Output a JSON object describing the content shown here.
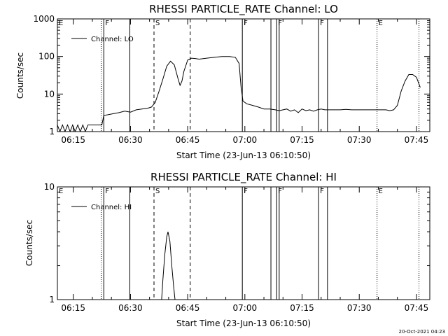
{
  "footer_timestamp": "20-Oct-2021 04:23",
  "chart_data": [
    {
      "type": "line",
      "title": "RHESSI PARTICLE_RATE Channel: LO",
      "xlabel": "Start Time (23-Jun-13 06:10:50)",
      "ylabel": "Counts/sec",
      "yscale": "log",
      "ylim": [
        1,
        1000
      ],
      "yticks": [
        1,
        10,
        100,
        1000
      ],
      "ytick_labels": [
        "1",
        "10",
        "100",
        "1000"
      ],
      "xlim": [
        "06:10:50",
        "07:48:30"
      ],
      "xticks": [
        "06:15",
        "06:30",
        "06:45",
        "07:00",
        "07:15",
        "07:30",
        "07:45"
      ],
      "legend": {
        "entry": "Channel: LO",
        "placement": "top-left"
      },
      "series": [
        {
          "name": "Channel: LO",
          "x": [
            "06:10:50",
            "06:11:30",
            "06:12:10",
            "06:12:50",
            "06:13:30",
            "06:14:10",
            "06:14:50",
            "06:15:30",
            "06:16:10",
            "06:16:50",
            "06:17:30",
            "06:18:10",
            "06:18:50",
            "06:19:30",
            "06:20:10",
            "06:21:30",
            "06:22:30",
            "06:23:00",
            "06:24:00",
            "06:25:30",
            "06:27:00",
            "06:28:30",
            "06:30:00",
            "06:31:30",
            "06:33:00",
            "06:34:30",
            "06:35:30",
            "06:36:30",
            "06:37:30",
            "06:38:30",
            "06:39:30",
            "06:40:30",
            "06:41:30",
            "06:42:30",
            "06:43:00",
            "06:43:30",
            "06:44:00",
            "06:45:00",
            "06:46:00",
            "06:47:00",
            "06:48:00",
            "06:50:00",
            "06:52:00",
            "06:54:00",
            "06:56:00",
            "06:57:30",
            "06:58:30",
            "06:59:00",
            "06:59:30",
            "07:00:30",
            "07:02:00",
            "07:03:30",
            "07:05:00",
            "07:06:30",
            "07:08:00",
            "07:09:00",
            "07:10:00",
            "07:11:00",
            "07:12:00",
            "07:13:00",
            "07:14:00",
            "07:15:00",
            "07:16:00",
            "07:17:00",
            "07:18:00",
            "07:19:00",
            "07:20:00",
            "07:21:00",
            "07:22:00",
            "07:23:30",
            "07:25:00",
            "07:26:30",
            "07:28:00",
            "07:29:30",
            "07:31:00",
            "07:32:30",
            "07:34:00",
            "07:35:30",
            "07:37:00",
            "07:38:00",
            "07:39:00",
            "07:40:00",
            "07:41:00",
            "07:42:00",
            "07:43:00",
            "07:44:00",
            "07:45:00",
            "07:46:00"
          ],
          "y": [
            1.5,
            1,
            1.5,
            1,
            1.5,
            1,
            1.5,
            1,
            1.5,
            1,
            1.5,
            1,
            1.5,
            1.5,
            1.5,
            1.5,
            1.5,
            2.7,
            2.8,
            3,
            3.2,
            3.5,
            3.3,
            3.8,
            4,
            4.2,
            4.5,
            6,
            12,
            25,
            55,
            75,
            60,
            25,
            17,
            22,
            40,
            80,
            90,
            88,
            85,
            90,
            95,
            100,
            100,
            95,
            65,
            15,
            6.5,
            5.5,
            5,
            4.5,
            4,
            4,
            3.8,
            3.6,
            3.8,
            4,
            3.5,
            3.8,
            3.2,
            4,
            3.6,
            3.8,
            3.5,
            3.8,
            4,
            3.8,
            3.8,
            3.8,
            3.8,
            3.9,
            3.8,
            3.8,
            3.8,
            3.8,
            3.8,
            3.8,
            3.8,
            3.6,
            3.8,
            5,
            12,
            22,
            33,
            33,
            28,
            15
          ]
        }
      ],
      "vertical_lines": [
        {
          "time": "06:10:50",
          "style": "solid",
          "label": "E"
        },
        {
          "time": "06:22:20",
          "style": "dotted",
          "label": ""
        },
        {
          "time": "06:23:00",
          "style": "solid",
          "label": "F"
        },
        {
          "time": "06:29:50",
          "style": "solid",
          "label": ""
        },
        {
          "time": "06:36:10",
          "style": "dashed",
          "label": "S"
        },
        {
          "time": "06:45:40",
          "style": "dashed",
          "label": ""
        },
        {
          "time": "06:59:20",
          "style": "solid",
          "label": "F"
        },
        {
          "time": "07:06:50",
          "style": "solid",
          "label": ""
        },
        {
          "time": "07:08:20",
          "style": "solid",
          "label": "F"
        },
        {
          "time": "07:09:00",
          "style": "solid",
          "label": ""
        },
        {
          "time": "07:19:20",
          "style": "solid",
          "label": "F"
        },
        {
          "time": "07:21:40",
          "style": "solid",
          "label": ""
        },
        {
          "time": "07:34:40",
          "style": "dotted",
          "label": "E"
        },
        {
          "time": "07:45:40",
          "style": "dotted",
          "label": ""
        }
      ]
    },
    {
      "type": "line",
      "title": "RHESSI PARTICLE_RATE Channel: HI",
      "xlabel": "Start Time (23-Jun-13 06:10:50)",
      "ylabel": "Counts/sec",
      "yscale": "log",
      "ylim": [
        1,
        10
      ],
      "yticks": [
        1,
        10
      ],
      "ytick_labels": [
        "1",
        "10"
      ],
      "xlim": [
        "06:10:50",
        "07:48:30"
      ],
      "xticks": [
        "06:15",
        "06:30",
        "06:45",
        "07:00",
        "07:15",
        "07:30",
        "07:45"
      ],
      "legend": {
        "entry": "Channel: HI",
        "placement": "top-left"
      },
      "series": [
        {
          "name": "Channel: HI",
          "x": [
            "06:38:10",
            "06:38:30",
            "06:39:00",
            "06:39:30",
            "06:39:50",
            "06:40:20",
            "06:40:50",
            "06:41:20",
            "06:41:40"
          ],
          "y": [
            1,
            1.5,
            2.5,
            3.6,
            4,
            3.3,
            2,
            1.3,
            1
          ]
        }
      ],
      "vertical_lines": [
        {
          "time": "06:10:50",
          "style": "solid",
          "label": "E"
        },
        {
          "time": "06:22:20",
          "style": "dotted",
          "label": ""
        },
        {
          "time": "06:23:00",
          "style": "solid",
          "label": "F"
        },
        {
          "time": "06:29:50",
          "style": "solid",
          "label": ""
        },
        {
          "time": "06:36:10",
          "style": "dashed",
          "label": "S"
        },
        {
          "time": "06:45:40",
          "style": "dashed",
          "label": ""
        },
        {
          "time": "06:59:20",
          "style": "solid",
          "label": "F"
        },
        {
          "time": "07:06:50",
          "style": "solid",
          "label": ""
        },
        {
          "time": "07:08:20",
          "style": "solid",
          "label": "F"
        },
        {
          "time": "07:09:00",
          "style": "solid",
          "label": ""
        },
        {
          "time": "07:19:20",
          "style": "solid",
          "label": "F"
        },
        {
          "time": "07:21:40",
          "style": "solid",
          "label": ""
        },
        {
          "time": "07:34:40",
          "style": "dotted",
          "label": "E"
        },
        {
          "time": "07:45:40",
          "style": "dotted",
          "label": ""
        }
      ]
    }
  ]
}
